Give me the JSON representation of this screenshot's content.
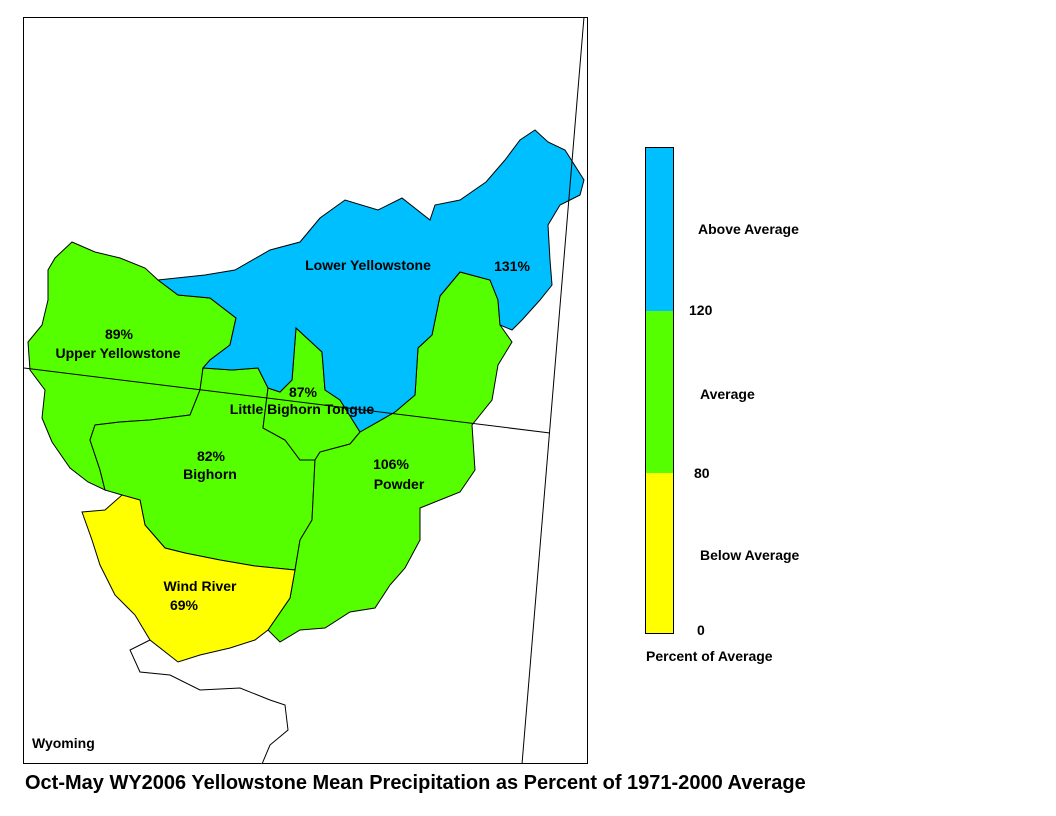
{
  "title": "Oct-May WY2006 Yellowstone Mean Precipitation as Percent of 1971-2000 Average",
  "state_label": "Wyoming",
  "colors": {
    "above": "#00bfff",
    "average": "#55ff00",
    "below": "#ffff00"
  },
  "basins": [
    {
      "id": "lower-yellowstone",
      "name": "Lower Yellowstone",
      "percent": "131%",
      "category": "above"
    },
    {
      "id": "upper-yellowstone",
      "name": "Upper Yellowstone",
      "percent": "89%",
      "category": "average"
    },
    {
      "id": "little-bighorn-tongue",
      "name": "Little Bighorn Tongue",
      "percent": "87%",
      "category": "average"
    },
    {
      "id": "bighorn",
      "name": "Bighorn",
      "percent": "82%",
      "category": "average"
    },
    {
      "id": "powder",
      "name": "Powder",
      "percent": "106%",
      "category": "average"
    },
    {
      "id": "wind-river",
      "name": "Wind River",
      "percent": "69%",
      "category": "below"
    }
  ],
  "legend": {
    "above_label": "Above Average",
    "average_label": "Average",
    "below_label": "Below Average",
    "tick_120": "120",
    "tick_80": "80",
    "tick_0": "0",
    "caption": "Percent of Average"
  }
}
